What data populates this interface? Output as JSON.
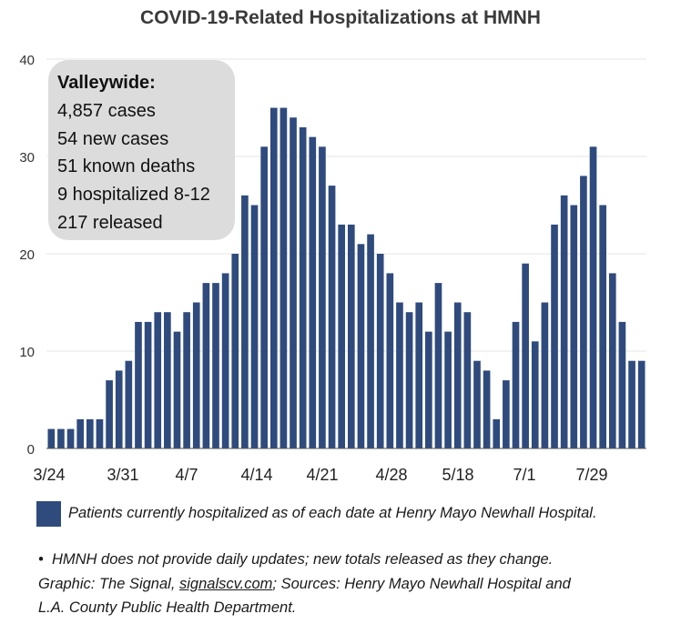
{
  "title": "COVID-19-Related Hospitalizations at HMNH",
  "info_box": {
    "heading": "Valleywide:",
    "lines": [
      "4,857 cases",
      "54 new cases",
      "51 known deaths",
      "9 hospitalized 8-12",
      "217 released"
    ]
  },
  "legend": {
    "label": "Patients currently hospitalized as of each date at Henry Mayo Newhall Hospital.",
    "color": "#2f4a7d"
  },
  "notes": {
    "bullet": "•",
    "line1": "HMNH does not provide daily updates; new totals released as they change.",
    "line2_prefix": "Graphic: The Signal, ",
    "line2_link": "signalscv.com",
    "line2_suffix": "; Sources: Henry Mayo Newhall Hospital and",
    "line3": "L.A. County Public Health Department."
  },
  "chart_data": {
    "type": "bar",
    "title": "COVID-19-Related Hospitalizations at HMNH",
    "xlabel": "",
    "ylabel": "",
    "ylim": [
      0,
      40
    ],
    "yticks": [
      0,
      10,
      20,
      30,
      40
    ],
    "xtick_labels": [
      "3/24",
      "3/31",
      "4/7",
      "4/14",
      "4/21",
      "4/28",
      "5/18",
      "7/1",
      "7/29"
    ],
    "grid": true,
    "color": "#2f4a7d",
    "values": [
      2,
      2,
      2,
      3,
      3,
      3,
      7,
      8,
      9,
      13,
      13,
      14,
      14,
      12,
      14,
      15,
      17,
      17,
      18,
      20,
      26,
      25,
      31,
      35,
      35,
      34,
      33,
      32,
      31,
      27,
      23,
      23,
      21,
      22,
      20,
      18,
      15,
      14,
      15,
      12,
      17,
      12,
      15,
      14,
      9,
      8,
      3,
      7,
      13,
      19,
      11,
      15,
      23,
      26,
      25,
      28,
      31,
      25,
      18,
      13,
      9,
      9
    ]
  }
}
